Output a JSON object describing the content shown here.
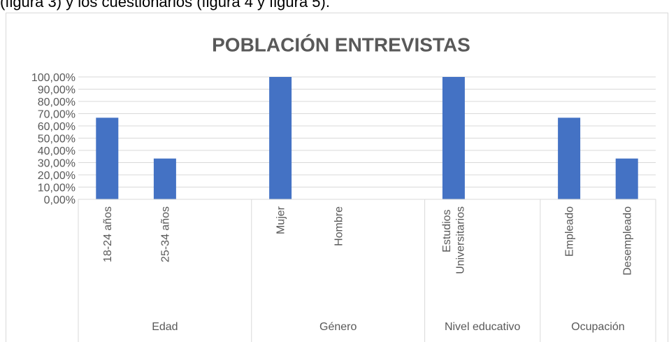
{
  "intro_text": "(figura 3) y los cuestionarios (figura 4 y figura 5).",
  "chart_data": {
    "type": "bar",
    "title": "POBLACIÓN ENTREVISTAS",
    "color": "#4472c4",
    "grid": true,
    "groups": [
      {
        "name": "Edad",
        "categories": [
          "18-24 años",
          "25-34 años",
          null
        ],
        "values": [
          66.67,
          33.33,
          null
        ]
      },
      {
        "name": "Género",
        "categories": [
          "Mujer",
          "Hombre",
          null
        ],
        "values": [
          100,
          0,
          null
        ]
      },
      {
        "name": "Nivel educativo",
        "categories": [
          "Estudios Universitarios",
          null
        ],
        "values": [
          100,
          null
        ]
      },
      {
        "name": "Ocupación",
        "categories": [
          "Empleado",
          "Desempleado"
        ],
        "values": [
          66.67,
          33.33
        ]
      }
    ],
    "ylim": [
      0,
      100
    ],
    "yticks": [
      {
        "value": 0,
        "label": "0,00%"
      },
      {
        "value": 10,
        "label": "10,00%"
      },
      {
        "value": 20,
        "label": "20,00%"
      },
      {
        "value": 30,
        "label": "30,00%"
      },
      {
        "value": 40,
        "label": "40,00%"
      },
      {
        "value": 50,
        "label": "50,00%"
      },
      {
        "value": 60,
        "label": "60,00%"
      },
      {
        "value": 70,
        "label": "70,00%"
      },
      {
        "value": 80,
        "label": "80,00%"
      },
      {
        "value": 90,
        "label": "90,00%"
      },
      {
        "value": 100,
        "label": "100,00%"
      }
    ]
  }
}
